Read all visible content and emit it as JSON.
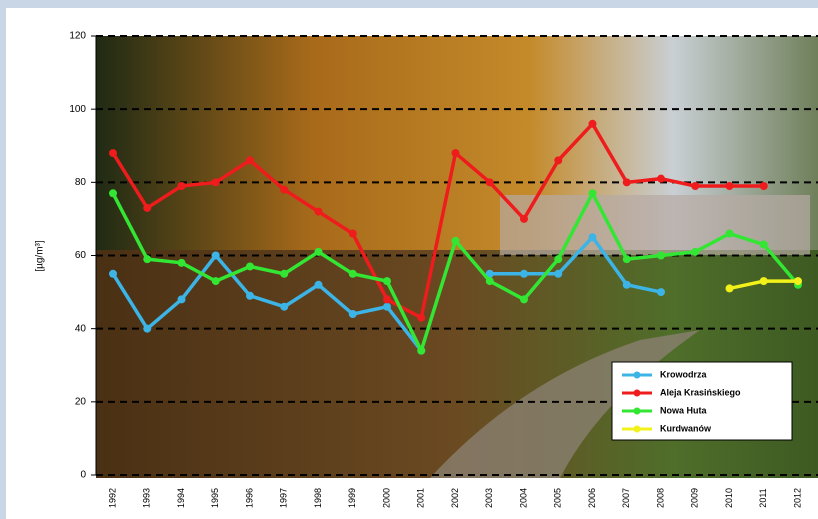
{
  "chart_data": {
    "type": "line",
    "y_label": "[µg/m³]",
    "categories": [
      "1992",
      "1993",
      "1994",
      "1995",
      "1996",
      "1997",
      "1998",
      "1999",
      "2000",
      "2001",
      "2002",
      "2003",
      "2004",
      "2005",
      "2006",
      "2007",
      "2008",
      "2009",
      "2010",
      "2011",
      "2012"
    ],
    "series": [
      {
        "name": "Krowodrza",
        "color": "#3cb4e6",
        "values": [
          55,
          40,
          48,
          60,
          49,
          46,
          52,
          44,
          46,
          34,
          null,
          55,
          55,
          55,
          65,
          52,
          50,
          null,
          null,
          null,
          null
        ]
      },
      {
        "name": "Aleja Krasińskiego",
        "color": "#ee1c1c",
        "values": [
          88,
          73,
          79,
          80,
          86,
          78,
          72,
          66,
          48,
          43,
          88,
          80,
          70,
          86,
          96,
          80,
          81,
          79,
          79,
          79,
          null
        ]
      },
      {
        "name": "Nowa Huta",
        "color": "#33e633",
        "values": [
          77,
          59,
          58,
          53,
          57,
          55,
          61,
          55,
          53,
          34,
          64,
          53,
          48,
          59,
          77,
          59,
          60,
          61,
          66,
          63,
          52
        ]
      },
      {
        "name": "Kurdwanów",
        "color": "#f2f21a",
        "values": [
          null,
          null,
          null,
          null,
          null,
          null,
          null,
          null,
          null,
          null,
          null,
          null,
          null,
          null,
          null,
          null,
          null,
          null,
          51,
          53,
          53
        ]
      }
    ],
    "ylim": [
      0,
      120
    ],
    "yticks": [
      0,
      20,
      40,
      60,
      80,
      100,
      120
    ],
    "grid": true
  }
}
